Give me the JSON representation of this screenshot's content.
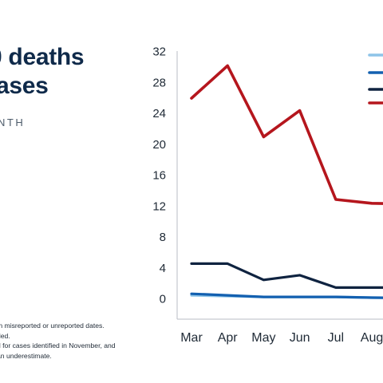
{
  "title": {
    "line1": "0 deaths",
    "line2": "ases"
  },
  "subtitle": "NTH",
  "notes": [
    "th misreported or unreported dates.",
    "ded.",
    "d for cases identified in November, and",
    "an underestimate."
  ],
  "chart_data": {
    "type": "line",
    "categories": [
      "Mar",
      "Apr",
      "May",
      "Jun",
      "Jul",
      "Aug"
    ],
    "ylim": [
      0,
      32
    ],
    "yticks": [
      0,
      4,
      8,
      12,
      16,
      20,
      24,
      28,
      32
    ],
    "grid": false,
    "legend_placement": "top-right",
    "series": [
      {
        "color": "#8ec4e8",
        "values": [
          0.4,
          0.3,
          0.2,
          0.2,
          0.2,
          0.1
        ]
      },
      {
        "color": "#1360b0",
        "values": [
          0.6,
          0.4,
          0.2,
          0.2,
          0.2,
          0.1
        ]
      },
      {
        "color": "#0f2340",
        "values": [
          4.5,
          4.5,
          2.4,
          3.0,
          1.4,
          1.4
        ]
      },
      {
        "color": "#b5161d",
        "values": [
          25.9,
          30.1,
          20.9,
          24.3,
          12.8,
          12.3
        ]
      }
    ]
  }
}
